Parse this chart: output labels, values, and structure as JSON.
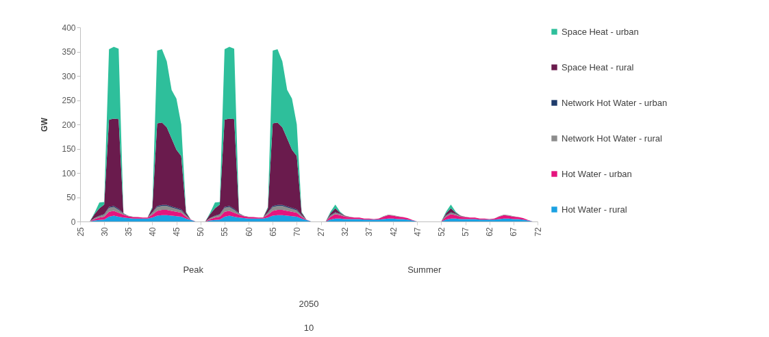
{
  "chart_data": {
    "type": "area",
    "stacked": true,
    "ylabel": "GW",
    "ylim": [
      0,
      400
    ],
    "yticks": [
      0,
      50,
      100,
      150,
      200,
      250,
      300,
      350,
      400
    ],
    "legend": "right",
    "categories": [
      "25",
      null,
      null,
      null,
      null,
      "30",
      null,
      null,
      null,
      null,
      "35",
      null,
      null,
      null,
      null,
      "40",
      null,
      null,
      null,
      null,
      "45",
      null,
      null,
      null,
      null,
      "50",
      null,
      null,
      null,
      null,
      "55",
      null,
      null,
      null,
      null,
      "60",
      null,
      null,
      null,
      null,
      "65",
      null,
      null,
      null,
      null,
      "70",
      null,
      null,
      null,
      null,
      "27",
      null,
      null,
      null,
      null,
      "32",
      null,
      null,
      null,
      null,
      "37",
      null,
      null,
      null,
      null,
      "42",
      null,
      null,
      null,
      null,
      "47",
      null,
      null,
      null,
      null,
      "52",
      null,
      null,
      null,
      null,
      "57",
      null,
      null,
      null,
      null,
      "62",
      null,
      null,
      null,
      null,
      "67",
      null,
      null,
      null,
      null,
      "72"
    ],
    "annotations": [
      "Peak",
      "Summer",
      "2050",
      "10"
    ],
    "series": [
      {
        "name": "Hot Water - rural",
        "color": "#1ba1e2",
        "values": [
          0,
          0,
          0,
          2,
          3,
          4,
          10,
          12,
          10,
          8,
          7,
          6,
          6,
          6,
          6,
          8,
          12,
          13,
          13,
          12,
          11,
          10,
          6,
          3,
          0,
          0,
          0,
          2,
          3,
          4,
          10,
          12,
          10,
          8,
          7,
          6,
          6,
          6,
          6,
          8,
          12,
          13,
          13,
          12,
          11,
          10,
          6,
          3,
          0,
          0,
          0,
          0,
          4,
          6,
          6,
          5,
          5,
          5,
          5,
          4,
          4,
          4,
          4,
          5,
          6,
          6,
          5,
          5,
          4,
          2,
          0,
          0,
          0,
          0,
          0,
          0,
          4,
          6,
          6,
          5,
          5,
          5,
          5,
          4,
          4,
          4,
          4,
          5,
          6,
          6,
          5,
          5,
          4,
          2,
          0,
          0
        ]
      },
      {
        "name": "Hot Water - urban",
        "color": "#e5147e",
        "values": [
          0,
          0,
          0,
          3,
          5,
          6,
          10,
          10,
          8,
          6,
          4,
          3,
          3,
          2,
          2,
          6,
          10,
          11,
          11,
          10,
          9,
          8,
          4,
          1,
          0,
          0,
          0,
          3,
          5,
          6,
          10,
          10,
          8,
          6,
          4,
          3,
          3,
          2,
          2,
          6,
          10,
          11,
          11,
          10,
          9,
          8,
          4,
          1,
          0,
          0,
          0,
          0,
          6,
          9,
          7,
          5,
          4,
          3,
          3,
          2,
          2,
          1,
          2,
          5,
          7,
          6,
          5,
          4,
          3,
          1,
          0,
          0,
          0,
          0,
          0,
          0,
          6,
          9,
          7,
          5,
          4,
          3,
          3,
          2,
          2,
          1,
          2,
          5,
          7,
          6,
          5,
          4,
          3,
          1,
          0,
          0
        ]
      },
      {
        "name": "Network Hot Water - rural",
        "color": "#8c8c8c",
        "values": [
          0,
          0,
          0,
          2,
          3,
          4,
          8,
          8,
          6,
          2,
          1,
          1,
          0,
          0,
          0,
          4,
          8,
          8,
          8,
          7,
          6,
          5,
          2,
          0,
          0,
          0,
          0,
          2,
          3,
          4,
          8,
          8,
          6,
          2,
          1,
          1,
          0,
          0,
          0,
          4,
          8,
          8,
          8,
          7,
          6,
          5,
          2,
          0,
          0,
          0,
          0,
          0,
          2,
          3,
          2,
          1,
          1,
          0,
          0,
          0,
          0,
          0,
          0,
          1,
          1,
          1,
          1,
          0,
          0,
          0,
          0,
          0,
          0,
          0,
          0,
          0,
          2,
          3,
          2,
          1,
          1,
          0,
          0,
          0,
          0,
          0,
          0,
          1,
          1,
          1,
          1,
          0,
          0,
          0,
          0,
          0
        ]
      },
      {
        "name": "Network Hot Water - urban",
        "color": "#1f3c6b",
        "values": [
          0,
          0,
          0,
          0,
          1,
          1,
          2,
          2,
          2,
          1,
          0,
          0,
          0,
          0,
          0,
          1,
          2,
          2,
          2,
          2,
          2,
          2,
          1,
          0,
          0,
          0,
          0,
          0,
          1,
          1,
          2,
          2,
          2,
          1,
          0,
          0,
          0,
          0,
          0,
          1,
          2,
          2,
          2,
          2,
          2,
          2,
          1,
          0,
          0,
          0,
          0,
          0,
          1,
          1,
          1,
          0,
          0,
          0,
          0,
          0,
          0,
          0,
          0,
          0,
          0,
          0,
          0,
          0,
          0,
          0,
          0,
          0,
          0,
          0,
          0,
          0,
          1,
          1,
          1,
          0,
          0,
          0,
          0,
          0,
          0,
          0,
          0,
          0,
          0,
          0,
          0,
          0,
          0,
          0,
          0,
          0
        ]
      },
      {
        "name": "Space Heat - rural",
        "color": "#6a1b4d",
        "values": [
          0,
          0,
          0,
          8,
          15,
          20,
          180,
          180,
          185,
          0,
          0,
          0,
          0,
          0,
          0,
          8,
          170,
          170,
          160,
          140,
          120,
          110,
          5,
          0,
          0,
          0,
          0,
          8,
          15,
          20,
          180,
          180,
          185,
          0,
          0,
          0,
          0,
          0,
          0,
          8,
          170,
          170,
          160,
          140,
          120,
          110,
          5,
          0,
          0,
          0,
          0,
          0,
          4,
          8,
          2,
          1,
          0,
          0,
          0,
          0,
          0,
          0,
          0,
          0,
          0,
          0,
          0,
          0,
          0,
          0,
          0,
          0,
          0,
          0,
          0,
          0,
          4,
          8,
          2,
          1,
          0,
          0,
          0,
          0,
          0,
          0,
          0,
          0,
          0,
          0,
          0,
          0,
          0,
          0,
          0,
          0
        ]
      },
      {
        "name": "Space Heat - urban",
        "color": "#2ebf9b",
        "values": [
          0,
          0,
          0,
          3,
          12,
          5,
          145,
          148,
          145,
          0,
          0,
          0,
          0,
          0,
          0,
          3,
          150,
          151,
          136,
          100,
          105,
          65,
          2,
          0,
          0,
          0,
          0,
          3,
          12,
          5,
          145,
          148,
          145,
          0,
          0,
          0,
          0,
          0,
          0,
          3,
          150,
          151,
          136,
          100,
          105,
          65,
          2,
          0,
          0,
          0,
          0,
          0,
          3,
          8,
          2,
          0,
          0,
          0,
          0,
          0,
          0,
          0,
          0,
          0,
          0,
          0,
          0,
          0,
          0,
          0,
          0,
          0,
          0,
          0,
          0,
          0,
          3,
          8,
          2,
          0,
          0,
          0,
          0,
          0,
          0,
          0,
          0,
          0,
          0,
          0,
          0,
          0,
          0,
          0,
          0,
          0
        ]
      }
    ]
  }
}
